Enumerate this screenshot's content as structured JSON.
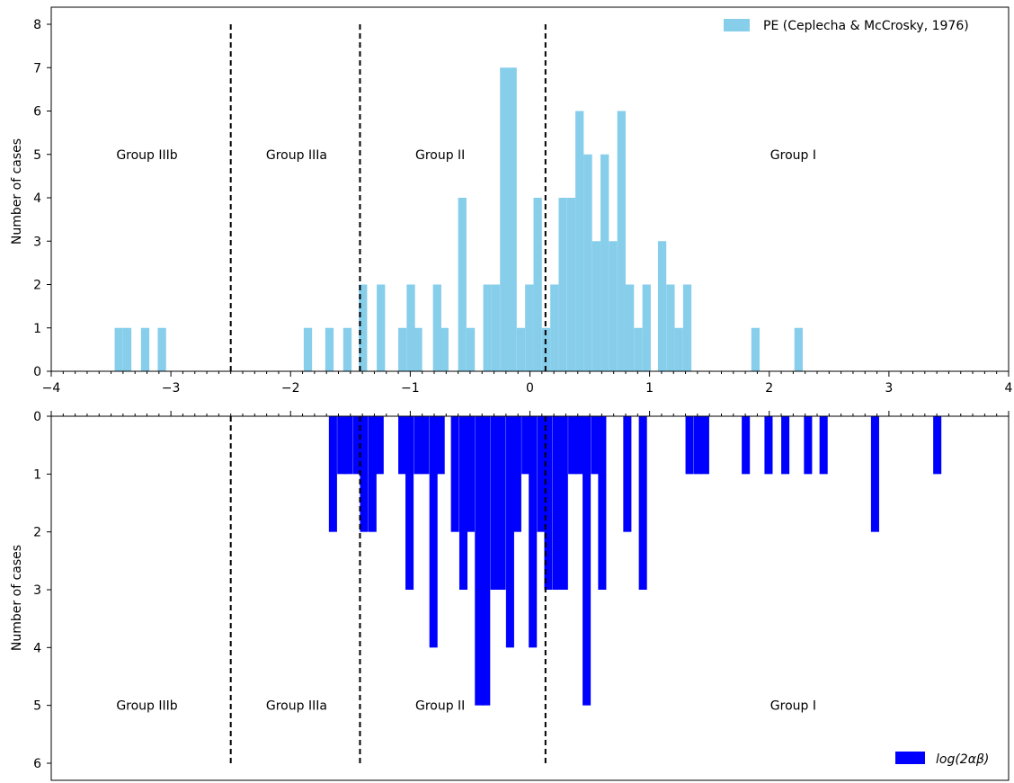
{
  "chart_data": [
    {
      "type": "bar",
      "panel": "top",
      "ylabel": "Number of cases",
      "xlim": [
        -4,
        4
      ],
      "ylim": [
        0,
        8
      ],
      "x_ticks": [
        -4,
        -3,
        -2,
        -1,
        0,
        1,
        2,
        3,
        4
      ],
      "y_ticks": [
        0,
        1,
        2,
        3,
        4,
        5,
        6,
        7,
        8
      ],
      "bin_width": 0.0667,
      "legend": {
        "label": "PE (Ceplecha & McCrosky, 1976)",
        "placement": "upper right",
        "color": "#87ceeb"
      },
      "color": "#87ceeb",
      "dividers_x": [
        -2.5,
        -1.42,
        0.13
      ],
      "group_labels": [
        {
          "text": "Group IIIb",
          "x": -3.2,
          "y": 5
        },
        {
          "text": "Group IIIa",
          "x": -1.95,
          "y": 5
        },
        {
          "text": "Group II",
          "x": -0.75,
          "y": 5
        },
        {
          "text": "Group I",
          "x": 2.2,
          "y": 5
        }
      ],
      "bars": [
        {
          "x": -3.47,
          "v": 1
        },
        {
          "x": -3.4,
          "v": 1
        },
        {
          "x": -3.25,
          "v": 1
        },
        {
          "x": -3.11,
          "v": 1
        },
        {
          "x": -1.89,
          "v": 1
        },
        {
          "x": -1.71,
          "v": 1
        },
        {
          "x": -1.56,
          "v": 1
        },
        {
          "x": -1.43,
          "v": 2
        },
        {
          "x": -1.28,
          "v": 2
        },
        {
          "x": -1.1,
          "v": 1
        },
        {
          "x": -1.03,
          "v": 2
        },
        {
          "x": -0.97,
          "v": 1
        },
        {
          "x": -0.81,
          "v": 2
        },
        {
          "x": -0.75,
          "v": 1
        },
        {
          "x": -0.6,
          "v": 4
        },
        {
          "x": -0.53,
          "v": 1
        },
        {
          "x": -0.39,
          "v": 2
        },
        {
          "x": -0.32,
          "v": 2
        },
        {
          "x": -0.25,
          "v": 7
        },
        {
          "x": -0.18,
          "v": 7
        },
        {
          "x": -0.11,
          "v": 1
        },
        {
          "x": -0.04,
          "v": 2
        },
        {
          "x": 0.03,
          "v": 4
        },
        {
          "x": 0.1,
          "v": 1
        },
        {
          "x": 0.17,
          "v": 2
        },
        {
          "x": 0.24,
          "v": 4
        },
        {
          "x": 0.31,
          "v": 4
        },
        {
          "x": 0.38,
          "v": 6
        },
        {
          "x": 0.45,
          "v": 5
        },
        {
          "x": 0.52,
          "v": 3
        },
        {
          "x": 0.59,
          "v": 5
        },
        {
          "x": 0.66,
          "v": 3
        },
        {
          "x": 0.73,
          "v": 6
        },
        {
          "x": 0.8,
          "v": 2
        },
        {
          "x": 0.87,
          "v": 1
        },
        {
          "x": 0.94,
          "v": 2
        },
        {
          "x": 1.07,
          "v": 3
        },
        {
          "x": 1.14,
          "v": 2
        },
        {
          "x": 1.21,
          "v": 1
        },
        {
          "x": 1.28,
          "v": 2
        },
        {
          "x": 1.85,
          "v": 1
        },
        {
          "x": 2.21,
          "v": 1
        }
      ]
    },
    {
      "type": "bar",
      "panel": "bottom",
      "ylabel": "Number of cases",
      "xlim": [
        -4,
        4
      ],
      "ylim": [
        6,
        0
      ],
      "y_inverted": true,
      "y_ticks": [
        0,
        1,
        2,
        3,
        4,
        5,
        6
      ],
      "bin_width": 0.065,
      "legend": {
        "label": "log(2αβ)",
        "placement": "lower right",
        "color": "#0000ff"
      },
      "color": "#0000ff",
      "dividers_x": [
        -2.5,
        -1.42,
        0.13
      ],
      "group_labels": [
        {
          "text": "Group IIIb",
          "x": -3.2,
          "y": 5
        },
        {
          "text": "Group IIIa",
          "x": -1.95,
          "y": 5
        },
        {
          "text": "Group II",
          "x": -0.75,
          "y": 5
        },
        {
          "text": "Group I",
          "x": 2.2,
          "y": 5
        }
      ],
      "bars": [
        {
          "x": -1.68,
          "v": 2
        },
        {
          "x": -1.61,
          "v": 1
        },
        {
          "x": -1.55,
          "v": 1
        },
        {
          "x": -1.48,
          "v": 1
        },
        {
          "x": -1.42,
          "v": 2
        },
        {
          "x": -1.35,
          "v": 2
        },
        {
          "x": -1.29,
          "v": 1
        },
        {
          "x": -1.1,
          "v": 1
        },
        {
          "x": -1.04,
          "v": 3
        },
        {
          "x": -0.97,
          "v": 1
        },
        {
          "x": -0.91,
          "v": 1
        },
        {
          "x": -0.84,
          "v": 4
        },
        {
          "x": -0.78,
          "v": 1
        },
        {
          "x": -0.66,
          "v": 2
        },
        {
          "x": -0.59,
          "v": 3
        },
        {
          "x": -0.53,
          "v": 2
        },
        {
          "x": -0.46,
          "v": 5
        },
        {
          "x": -0.4,
          "v": 5
        },
        {
          "x": -0.33,
          "v": 3
        },
        {
          "x": -0.27,
          "v": 3
        },
        {
          "x": -0.2,
          "v": 4
        },
        {
          "x": -0.14,
          "v": 2
        },
        {
          "x": -0.07,
          "v": 1
        },
        {
          "x": -0.01,
          "v": 4
        },
        {
          "x": 0.06,
          "v": 2
        },
        {
          "x": 0.12,
          "v": 3
        },
        {
          "x": 0.19,
          "v": 3
        },
        {
          "x": 0.25,
          "v": 3
        },
        {
          "x": 0.32,
          "v": 1
        },
        {
          "x": 0.38,
          "v": 1
        },
        {
          "x": 0.44,
          "v": 5
        },
        {
          "x": 0.51,
          "v": 1
        },
        {
          "x": 0.57,
          "v": 3
        },
        {
          "x": 0.78,
          "v": 2
        },
        {
          "x": 0.91,
          "v": 3
        },
        {
          "x": 1.3,
          "v": 1
        },
        {
          "x": 1.37,
          "v": 1
        },
        {
          "x": 1.43,
          "v": 1
        },
        {
          "x": 1.77,
          "v": 1
        },
        {
          "x": 1.96,
          "v": 1
        },
        {
          "x": 2.1,
          "v": 1
        },
        {
          "x": 2.29,
          "v": 1
        },
        {
          "x": 2.42,
          "v": 1
        },
        {
          "x": 2.85,
          "v": 2
        },
        {
          "x": 3.37,
          "v": 1
        }
      ]
    }
  ]
}
